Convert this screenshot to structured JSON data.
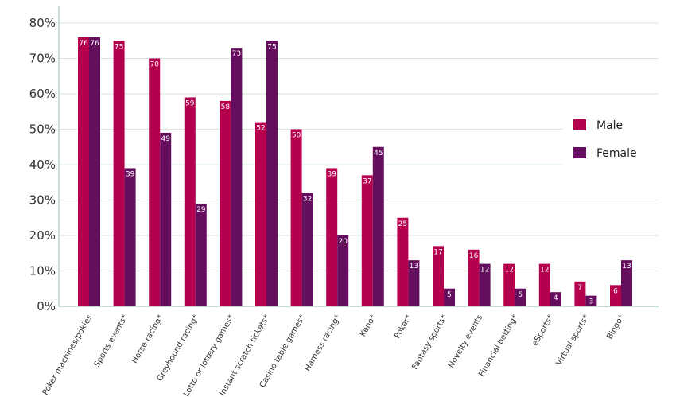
{
  "chart_data": {
    "type": "bar",
    "title": "",
    "xlabel": "",
    "ylabel": "",
    "ylim": [
      0,
      80
    ],
    "y_ticks": [
      "0%",
      "10%",
      "20%",
      "30%",
      "40%",
      "50%",
      "60%",
      "70%",
      "80%"
    ],
    "y_tick_values": [
      0,
      10,
      20,
      30,
      40,
      50,
      60,
      70,
      80
    ],
    "grid": true,
    "legend_position": "right",
    "categories": [
      "Poker machines/pokies",
      "Sports events*",
      "Horse racing*",
      "Greyhound racing*",
      "Lotto or lottery games*",
      "Instant scratch tickets*",
      "Casino table games*",
      "Harness racing*",
      "Keno*",
      "Poker*",
      "Fantasy sports*",
      "Novelty events",
      "Financial betting*",
      "eSports*",
      "Virtual sports*",
      "Bingo*"
    ],
    "series": [
      {
        "name": "Male",
        "color": "#b5004e",
        "values": [
          76,
          75,
          70,
          59,
          58,
          52,
          50,
          39,
          37,
          25,
          17,
          16,
          12,
          12,
          7,
          6
        ]
      },
      {
        "name": "Female",
        "color": "#650e5e",
        "values": [
          76,
          39,
          49,
          29,
          73,
          75,
          32,
          20,
          45,
          13,
          5,
          12,
          5,
          4,
          3,
          13
        ]
      }
    ]
  }
}
